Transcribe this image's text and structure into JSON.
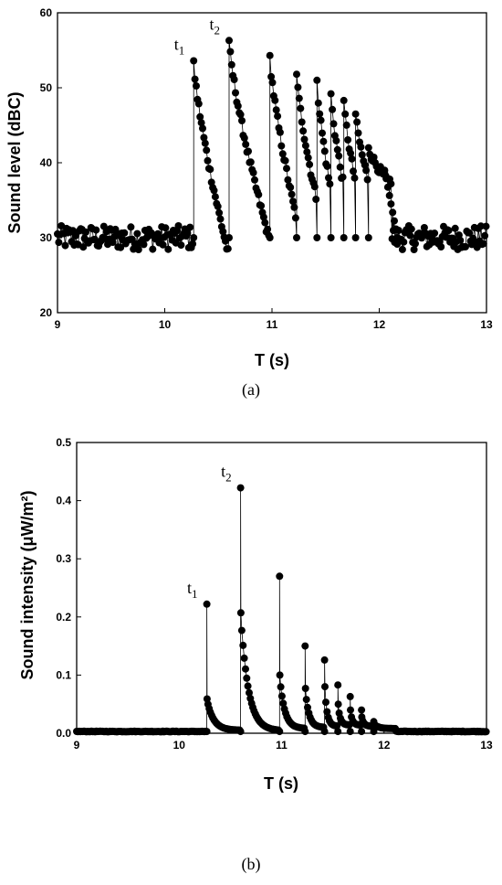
{
  "chart_data": [
    {
      "type": "scatter",
      "panel_label": "(a)",
      "xlabel": "T (s)",
      "ylabel": "Sound level (dBC)",
      "xlim": [
        9,
        13
      ],
      "ylim": [
        20,
        60
      ],
      "xticks": [
        9,
        10,
        11,
        12,
        13
      ],
      "yticks": [
        20,
        30,
        40,
        50,
        60
      ],
      "grid": false,
      "baseline": {
        "mean": 30,
        "noise": 1.6,
        "x_ranges": [
          [
            9.0,
            10.26
          ],
          [
            12.12,
            13.0
          ]
        ]
      },
      "annotations": [
        {
          "text": "t",
          "subscript": "1",
          "x": 10.27,
          "y": 53.6
        },
        {
          "text": "t",
          "subscript": "2",
          "x": 10.6,
          "y": 56.3
        }
      ],
      "pulses": [
        {
          "t": 10.27,
          "peak": 53.6,
          "end_t": 10.59,
          "end_level": 28.0
        },
        {
          "t": 10.6,
          "peak": 56.3,
          "end_t": 10.97,
          "end_level": 30.0
        },
        {
          "t": 10.98,
          "peak": 54.3,
          "end_t": 11.22,
          "end_level": 33.0
        },
        {
          "t": 11.23,
          "peak": 51.8,
          "end_t": 11.41,
          "end_level": 35.5
        },
        {
          "t": 11.42,
          "peak": 51.0,
          "end_t": 11.54,
          "end_level": 37.0
        },
        {
          "t": 11.55,
          "peak": 49.2,
          "end_t": 11.66,
          "end_level": 37.5
        },
        {
          "t": 11.67,
          "peak": 48.3,
          "end_t": 11.77,
          "end_level": 38.0
        },
        {
          "t": 11.78,
          "peak": 46.5,
          "end_t": 11.89,
          "end_level": 38.0
        },
        {
          "t": 11.9,
          "peak": 42.0,
          "end_t": 12.11,
          "end_level": 37.0
        }
      ],
      "tail": {
        "from_t": 12.05,
        "to_t": 12.17,
        "from_level": 39.0,
        "to_level": 30.0
      },
      "series": [
        {
          "values_note": "",
          "marker": "filled-circle",
          "color": "#000000"
        }
      ]
    },
    {
      "type": "scatter",
      "panel_label": "(b)",
      "xlabel": "T (s)",
      "ylabel": "Sound intensity (μW/m²)",
      "xlim": [
        9,
        13
      ],
      "ylim": [
        0,
        0.5
      ],
      "xticks": [
        9,
        10,
        11,
        12,
        13
      ],
      "yticks": [
        0.0,
        0.1,
        0.2,
        0.3,
        0.4,
        0.5
      ],
      "grid": false,
      "baseline": {
        "mean": 0.003,
        "noise": 0.0005,
        "x_ranges": [
          [
            9.0,
            10.26
          ],
          [
            12.12,
            13.0
          ]
        ]
      },
      "annotations": [
        {
          "text": "t",
          "subscript": "1",
          "x": 10.27,
          "y": 0.222
        },
        {
          "text": "t",
          "subscript": "2",
          "x": 10.6,
          "y": 0.422
        }
      ],
      "pulses": [
        {
          "t": 10.27,
          "peak": 0.222,
          "second": 0.059,
          "end_t": 10.59,
          "end_level": 0.005
        },
        {
          "t": 10.6,
          "peak": 0.422,
          "second": 0.207,
          "end_t": 10.97,
          "end_level": 0.004
        },
        {
          "t": 10.98,
          "peak": 0.27,
          "second": 0.1,
          "end_t": 11.22,
          "end_level": 0.008
        },
        {
          "t": 11.23,
          "peak": 0.15,
          "second": 0.077,
          "end_t": 11.41,
          "end_level": 0.01
        },
        {
          "t": 11.42,
          "peak": 0.126,
          "second": 0.08,
          "end_t": 11.54,
          "end_level": 0.012
        },
        {
          "t": 11.55,
          "peak": 0.083,
          "second": 0.05,
          "end_t": 11.66,
          "end_level": 0.014
        },
        {
          "t": 11.67,
          "peak": 0.063,
          "second": 0.04,
          "end_t": 11.77,
          "end_level": 0.014
        },
        {
          "t": 11.78,
          "peak": 0.04,
          "second": 0.028,
          "end_t": 11.89,
          "end_level": 0.012
        },
        {
          "t": 11.9,
          "peak": 0.02,
          "second": 0.016,
          "end_t": 12.11,
          "end_level": 0.008
        }
      ],
      "series": [
        {
          "marker": "filled-circle",
          "color": "#000000"
        }
      ]
    }
  ]
}
